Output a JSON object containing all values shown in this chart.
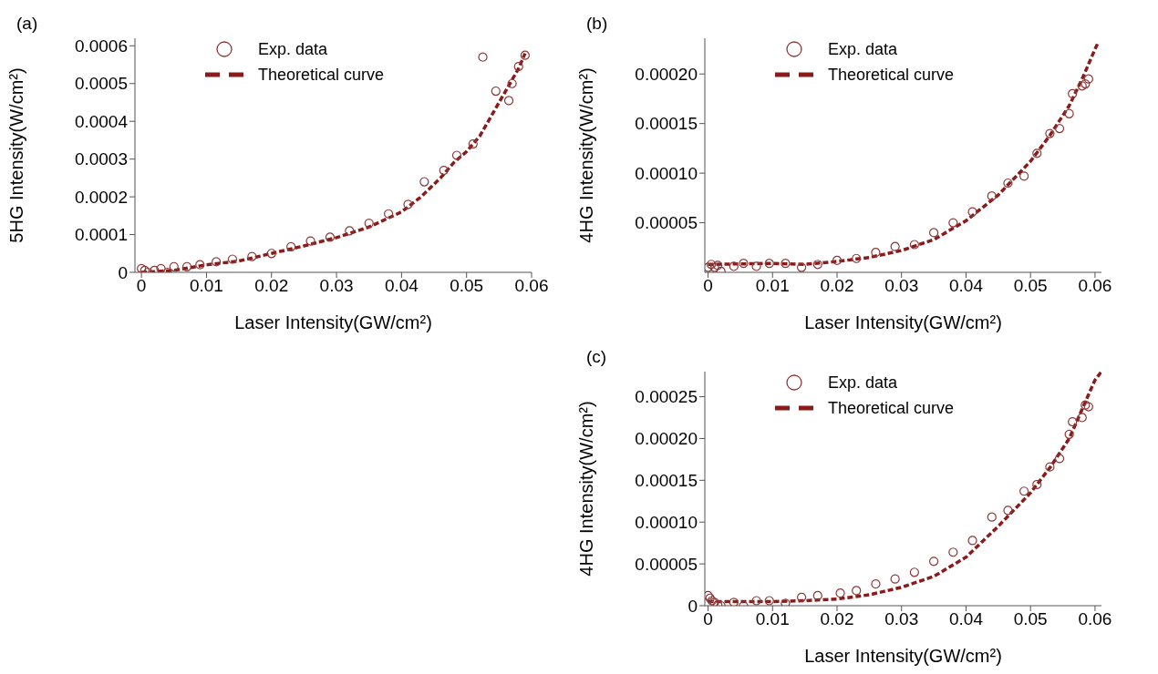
{
  "chart_data": [
    {
      "type": "scatter",
      "title": "(a)",
      "xlabel": "Laser Intensity(GW/cm²)",
      "ylabel": "5HG Intensity(W/cm²)",
      "xlim": [
        -0.001,
        0.06
      ],
      "xticks": [
        0,
        0.01,
        0.02,
        0.03,
        0.04,
        0.05,
        0.06
      ],
      "ylim": [
        0,
        0.00062
      ],
      "yticks": [
        0,
        0.0001,
        0.0002,
        0.0003,
        0.0004,
        0.0005,
        0.0006
      ],
      "grid": false,
      "legend": "top",
      "series": [
        {
          "name": "Exp. data",
          "type": "scatter",
          "marker": "circle",
          "color": "#8b3a3a",
          "x": [
            0,
            0.0005,
            0.001,
            0.002,
            0.003,
            0.004,
            0.005,
            0.007,
            0.009,
            0.0115,
            0.014,
            0.017,
            0.02,
            0.023,
            0.026,
            0.029,
            0.032,
            0.035,
            0.038,
            0.041,
            0.0435,
            0.0465,
            0.0485,
            0.051,
            0.0525,
            0.0545,
            0.0565,
            0.057,
            0.058,
            0.059
          ],
          "values": [
            1e-05,
            5e-06,
            0,
            5e-06,
            1e-05,
            0,
            1.5e-05,
            1.5e-05,
            2e-05,
            2.8e-05,
            3.5e-05,
            4.2e-05,
            5e-05,
            6.8e-05,
            8.3e-05,
            9.3e-05,
            0.00011,
            0.00013,
            0.000155,
            0.00018,
            0.00024,
            0.00027,
            0.00031,
            0.00034,
            0.00057,
            0.00048,
            0.000455,
            0.0005,
            0.000545,
            0.000575
          ]
        },
        {
          "name": "Theoretical curve",
          "type": "line",
          "line_style": "dashed",
          "marker": "none",
          "color": "#8b1a1a",
          "x": [
            0,
            0.005,
            0.01,
            0.015,
            0.02,
            0.025,
            0.03,
            0.035,
            0.04,
            0.043,
            0.046,
            0.048,
            0.05,
            0.052,
            0.054,
            0.056,
            0.058,
            0.059
          ],
          "values": [
            0,
            5e-06,
            2e-05,
            3e-05,
            5e-05,
            7e-05,
            9.2e-05,
            0.00012,
            0.00016,
            0.0002,
            0.00025,
            0.00029,
            0.00032,
            0.00036,
            0.00042,
            0.00048,
            0.00054,
            0.00058
          ]
        }
      ]
    },
    {
      "type": "scatter",
      "title": "(b)",
      "xlabel": "Laser Intensity(GW/cm²)",
      "ylabel": "4HG Intensity(W/cm²)",
      "xlim": [
        -0.0005,
        0.061
      ],
      "xticks": [
        0,
        0.01,
        0.02,
        0.03,
        0.04,
        0.05,
        0.06
      ],
      "ylim": [
        0,
        0.000236
      ],
      "yticks": [
        {
          "value": 5e-05,
          "label": "0.00005"
        },
        {
          "value": 0.0001,
          "label": "0.00010"
        },
        {
          "value": 0.00015,
          "label": "0.00015"
        },
        {
          "value": 0.0002,
          "label": "0.00020"
        }
      ],
      "grid": false,
      "legend": "top",
      "series": [
        {
          "name": "Exp. data",
          "type": "scatter",
          "marker": "circle",
          "color": "#8b3a3a",
          "x": [
            0,
            0.0005,
            0.001,
            0.0015,
            0.002,
            0.004,
            0.0055,
            0.0075,
            0.0095,
            0.012,
            0.0145,
            0.017,
            0.02,
            0.023,
            0.026,
            0.029,
            0.032,
            0.035,
            0.038,
            0.041,
            0.044,
            0.0465,
            0.049,
            0.051,
            0.053,
            0.0545,
            0.056,
            0.0565,
            0.058,
            0.0585,
            0.059
          ],
          "values": [
            5e-06,
            8e-06,
            5e-06,
            7e-06,
            1e-06,
            6e-06,
            9e-06,
            6e-06,
            9e-06,
            9e-06,
            5e-06,
            8e-06,
            1.2e-05,
            1.4e-05,
            2e-05,
            2.6e-05,
            2.8e-05,
            4e-05,
            5e-05,
            6.1e-05,
            7.7e-05,
            9e-05,
            9.7e-05,
            0.00012,
            0.00014,
            0.000145,
            0.00016,
            0.00018,
            0.000188,
            0.00019,
            0.000195
          ]
        },
        {
          "name": "Theoretical curve",
          "type": "line",
          "line_style": "dashed",
          "marker": "none",
          "color": "#8b1a1a",
          "x": [
            0,
            0.01,
            0.015,
            0.02,
            0.025,
            0.03,
            0.035,
            0.04,
            0.045,
            0.05,
            0.053,
            0.056,
            0.058,
            0.06,
            0.0605
          ],
          "values": [
            8e-06,
            9e-06,
            8e-06,
            1.1e-05,
            1.5e-05,
            2.2e-05,
            3.3e-05,
            5.2e-05,
            7.8e-05,
            0.000112,
            0.000138,
            0.000168,
            0.000195,
            0.000225,
            0.000232
          ]
        }
      ]
    },
    {
      "type": "scatter",
      "title": "(c)",
      "xlabel": "Laser Intensity(GW/cm²)",
      "ylabel": "4HG Intensity(W/cm²)",
      "xlim": [
        -0.0005,
        0.061
      ],
      "xticks": [
        0,
        0.01,
        0.02,
        0.03,
        0.04,
        0.05,
        0.06
      ],
      "ylim": [
        0,
        0.00028
      ],
      "yticks": [
        0,
        {
          "value": 5e-05,
          "label": "0.00005"
        },
        {
          "value": 0.0001,
          "label": "0.00010"
        },
        {
          "value": 0.00015,
          "label": "0.00015"
        },
        {
          "value": 0.0002,
          "label": "0.00020"
        },
        {
          "value": 0.00025,
          "label": "0.00025"
        }
      ],
      "grid": false,
      "legend": "top",
      "series": [
        {
          "name": "Exp. data",
          "type": "scatter",
          "marker": "circle",
          "color": "#8b3a3a",
          "x": [
            0,
            0.0003,
            0.0006,
            0.001,
            0.0015,
            0.002,
            0.004,
            0.0055,
            0.0075,
            0.0095,
            0.012,
            0.0145,
            0.017,
            0.0205,
            0.023,
            0.026,
            0.029,
            0.032,
            0.035,
            0.038,
            0.041,
            0.044,
            0.0465,
            0.049,
            0.051,
            0.053,
            0.0545,
            0.056,
            0.0565,
            0.058,
            0.0585,
            0.059
          ],
          "values": [
            1.2e-05,
            9e-06,
            6e-06,
            4e-06,
            1e-06,
            0,
            4e-06,
            0,
            6e-06,
            6e-06,
            3e-06,
            1e-05,
            1.2e-05,
            1.5e-05,
            1.8e-05,
            2.6e-05,
            3.2e-05,
            4e-05,
            5.3e-05,
            6.4e-05,
            7.8e-05,
            0.000106,
            0.000114,
            0.000137,
            0.000145,
            0.000166,
            0.000176,
            0.000205,
            0.00022,
            0.000225,
            0.00024,
            0.000238
          ]
        },
        {
          "name": "Theoretical curve",
          "type": "line",
          "line_style": "dashed",
          "marker": "none",
          "color": "#8b1a1a",
          "x": [
            0,
            0.01,
            0.015,
            0.02,
            0.025,
            0.03,
            0.035,
            0.04,
            0.045,
            0.05,
            0.053,
            0.056,
            0.058,
            0.06,
            0.061
          ],
          "values": [
            5e-06,
            5e-06,
            6e-06,
            8e-06,
            1.3e-05,
            2.2e-05,
            3.5e-05,
            5.8e-05,
            9.5e-05,
            0.000135,
            0.000165,
            0.0002,
            0.000235,
            0.00027,
            0.00028
          ]
        }
      ]
    }
  ]
}
